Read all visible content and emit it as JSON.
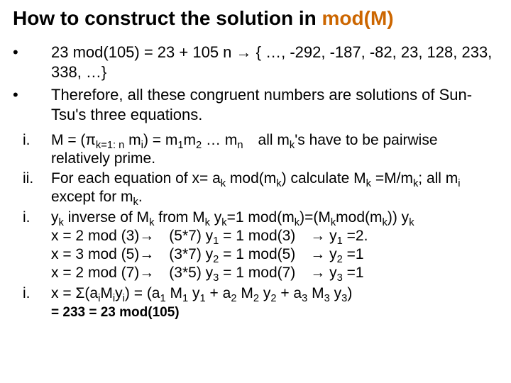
{
  "title": {
    "main": "How to construct the solution in ",
    "modm": "mod(M)"
  },
  "bullets": [
    {
      "marker": "•",
      "text": "23 mod(105) = 23 + 105 n → { …, -292, -187, -82, 23, 128, 233, 338, …}"
    },
    {
      "marker": "•",
      "text": "Therefore, all these congruent numbers are solutions of Sun-Tsu's three equations."
    }
  ],
  "sub": [
    {
      "marker": "i.",
      "html": "M = (π<sub>k=1: n</sub> m<sub>i</sub>) = m<sub>1</sub>m<sub>2</sub> … m<sub>n</sub> all m<sub>k</sub>'s have to be pairwise relatively prime."
    },
    {
      "marker": "ii.",
      "html": "For each equation of x= a<sub>k</sub> mod(m<sub>k</sub>) calculate M<sub>k</sub> =M/m<sub>k</sub>; all m<sub>i</sub> except for m<sub>k</sub>."
    },
    {
      "marker": "i.",
      "html": "y<sub>k</sub> inverse of M<sub>k</sub> from M<sub>k</sub> y<sub>k</sub>=1 mod(m<sub>k</sub>)=(M<sub>k</sub>mod(m<sub>k</sub>)) y<sub>k</sub><br><span class='indent-eq'>x = 2 mod (3)→ (5*7) y<sub>1</sub> = 1 mod(3) → y<sub>1</sub> =2.</span><br><span class='indent-eq'>x = 3 mod (5)→ (3*7) y<sub>2</sub> = 1 mod(5) → y<sub>2</sub> =1</span><br><span class='indent-eq'>x = 2 mod (7)→ (3*5) y<sub>3</sub> = 1 mod(7) → y<sub>3</sub> =1</span>"
    },
    {
      "marker": "i.",
      "html": "x = Σ(a<sub>i</sub>M<sub>i</sub>y<sub>i</sub>) = (a<sub>1</sub> M<sub>1</sub> y<sub>1</sub> + a<sub>2</sub> M<sub>2</sub> y<sub>2</sub> + a<sub>3</sub> M<sub>3</sub> y<sub>3</sub>)"
    }
  ],
  "final": "= 233 = 23 mod(105)"
}
